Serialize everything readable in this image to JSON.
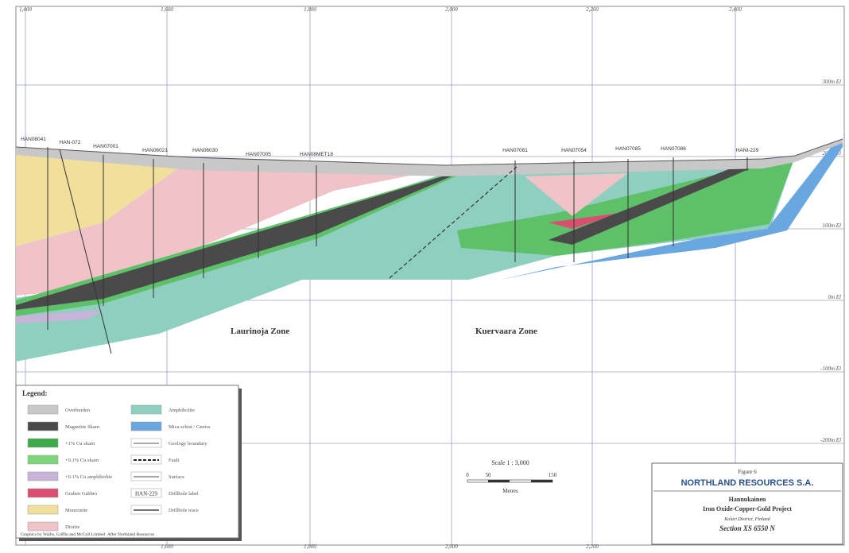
{
  "grid": {
    "top_labels": [
      "1,400",
      "1,600",
      "1,800",
      "2,000",
      "2,200",
      "2,400"
    ],
    "bottom_labels": [
      "1,600",
      "1,800",
      "2,000",
      "2,200"
    ],
    "elevation_labels": [
      "300m El",
      "200m El",
      "100m El",
      "0m El",
      "-100m El",
      "-200m El"
    ]
  },
  "drillholes": [
    "HAN08041",
    "HAN-072",
    "HAN07001",
    "HAN06021",
    "HAN06030",
    "HAN07005",
    "HAN08MET18",
    "HAN07081",
    "HAN07054",
    "HAN07085",
    "HAN07086",
    "HANI-229"
  ],
  "zones": [
    "Laurinoja Zone",
    "Kuervaara Zone"
  ],
  "legend": {
    "title": "Legend:",
    "items": [
      "Overburden",
      "Magnetite Skarn",
      "+1% Cu skarn",
      "+0.1% Cu skarn",
      "+0.1% Cu amphibolite",
      "Graben Gabbro",
      "Monzonite",
      "Diorite",
      "Amphibolite",
      "Mica schist / Gneiss",
      "Geology boundary",
      "Fault",
      "Surface",
      "Drillhole label",
      "Drillhole trace"
    ],
    "sample_label": "HAN-229"
  },
  "scale": {
    "title": "Scale 1 : 3,000",
    "ticks": [
      "0",
      "50",
      "150"
    ],
    "unit": "Metres"
  },
  "title_block": {
    "figure": "Figure 6",
    "company": "NORTHLAND RESOURCES S.A.",
    "project": [
      "Hannukainen",
      "Iron Oxide-Copper-Gold Project"
    ],
    "location": "Kolari District, Finland",
    "section": "Section XS 6550 N"
  },
  "credits": [
    "Graphics by Wallis, Griffin and McColl Limited",
    "After Northland Resources"
  ]
}
